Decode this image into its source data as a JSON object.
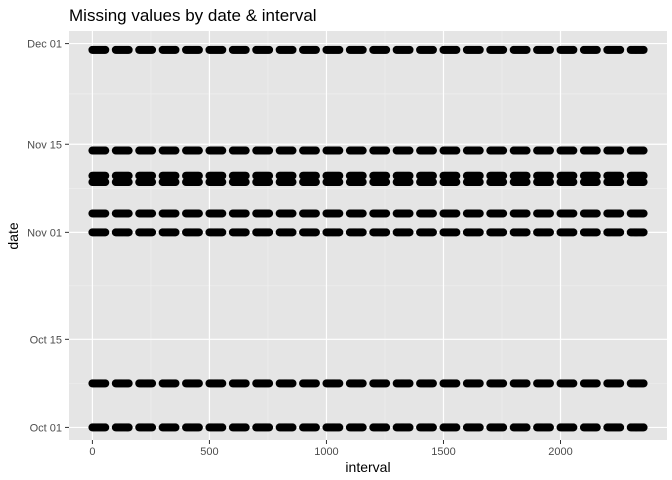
{
  "chart_data": {
    "type": "scatter",
    "title": "Missing values by date & interval",
    "xlabel": "interval",
    "ylabel": "date",
    "xlim": [
      -100,
      2455
    ],
    "ylim": [
      "2012-09-29",
      "2012-12-03"
    ],
    "x_ticks": [
      {
        "value": 0,
        "label": "0"
      },
      {
        "value": 500,
        "label": "500"
      },
      {
        "value": 1000,
        "label": "1000"
      },
      {
        "value": 1500,
        "label": "1500"
      },
      {
        "value": 2000,
        "label": "2000"
      }
    ],
    "y_ticks": [
      {
        "value": "2012-10-01",
        "label": "Oct 01"
      },
      {
        "value": "2012-10-15",
        "label": "Oct 15"
      },
      {
        "value": "2012-11-01",
        "label": "Nov 01"
      },
      {
        "value": "2012-11-15",
        "label": "Nov 15"
      },
      {
        "value": "2012-12-01",
        "label": "Dec 01"
      }
    ],
    "grid": true,
    "interval_range": [
      0,
      2355
    ],
    "interval_step": 5,
    "missing_dates": [
      "2012-10-01",
      "2012-10-08",
      "2012-11-01",
      "2012-11-04",
      "2012-11-09",
      "2012-11-10",
      "2012-11-14",
      "2012-11-30"
    ],
    "colors": {
      "panel_background": "#e5e5e5",
      "grid_major": "#ffffff",
      "grid_minor": "#f0f0f0",
      "point": "#000000"
    }
  }
}
